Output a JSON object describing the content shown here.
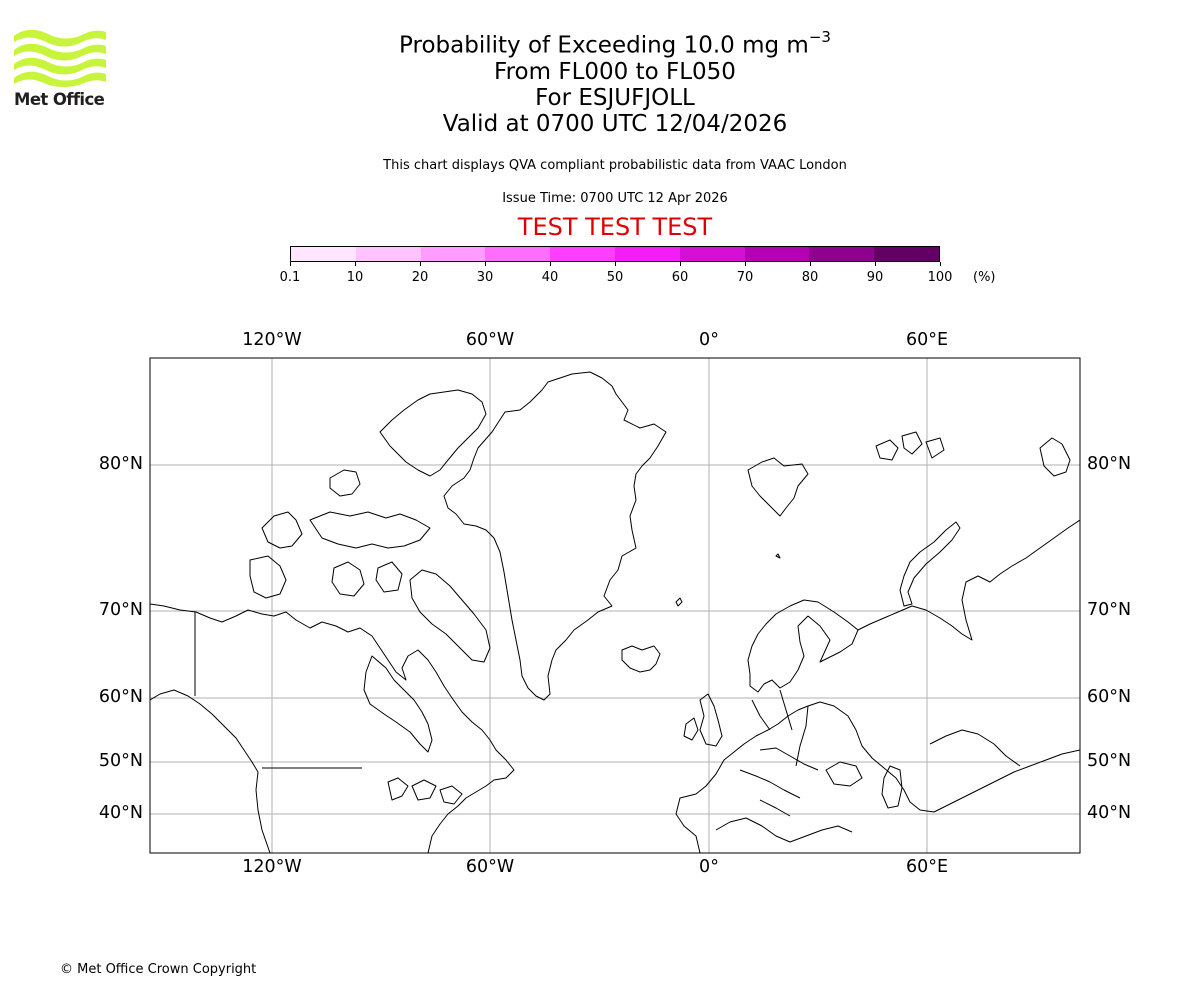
{
  "logo": {
    "text": "Met Office",
    "wave_color": "#c8f53c"
  },
  "title": {
    "line1_prefix": "Probability of Exceeding 10.0 mg m",
    "line1_superscript": "−3",
    "line2": "From FL000 to FL050",
    "line3": "For ESJUFJOLL",
    "line4": "Valid at 0700 UTC 12/04/2026"
  },
  "description": "This chart displays QVA compliant probabilistic data from VAAC London",
  "issue_time": "Issue Time: 0700 UTC 12 Apr 2026",
  "test_banner": {
    "text": "TEST TEST TEST",
    "color": "#e00000"
  },
  "colorbar": {
    "unit": "(%)",
    "ticks": [
      "0.1",
      "10",
      "20",
      "30",
      "40",
      "50",
      "60",
      "70",
      "80",
      "90",
      "100"
    ],
    "colors": [
      "#ffe6ff",
      "#ffc3ff",
      "#ff9cff",
      "#ff6dff",
      "#ff3eff",
      "#f51df5",
      "#d410d4",
      "#b400b4",
      "#8f008f",
      "#630063"
    ]
  },
  "map": {
    "projection": "Mercator",
    "gridline_color": "#b0b0b0",
    "longitude_labels": [
      "120°W",
      "60°W",
      "0°",
      "60°E"
    ],
    "latitude_labels": [
      "80°N",
      "70°N",
      "60°N",
      "50°N",
      "40°N"
    ],
    "probability_shading": "none visible"
  },
  "chart_data": {
    "type": "heatmap",
    "title": "Probability of Exceeding 10.0 mg m−3 From FL000 to FL050 For ESJUFJOLL Valid at 0700 UTC 12/04/2026",
    "subtitle": "This chart displays QVA compliant probabilistic data from VAAC London; Issue Time: 0700 UTC 12 Apr 2026",
    "annotation": "TEST TEST TEST",
    "colorbar": {
      "label": "(%)",
      "bounds": [
        0.1,
        10,
        20,
        30,
        40,
        50,
        60,
        70,
        80,
        90,
        100
      ],
      "colors": [
        "#ffe6ff",
        "#ffc3ff",
        "#ff9cff",
        "#ff6dff",
        "#ff3eff",
        "#f51df5",
        "#d410d4",
        "#b400b4",
        "#8f008f",
        "#630063"
      ]
    },
    "x_ticks": [
      "120°W",
      "60°W",
      "0°",
      "60°E"
    ],
    "y_ticks": [
      "80°N",
      "70°N",
      "60°N",
      "50°N",
      "40°N"
    ],
    "xlim": [
      "~153°W",
      "~102°E"
    ],
    "ylim": [
      "~35°N",
      "~85°N"
    ],
    "grid": true,
    "values": []
  },
  "footer": {
    "copyright": "© Met Office Crown Copyright"
  }
}
